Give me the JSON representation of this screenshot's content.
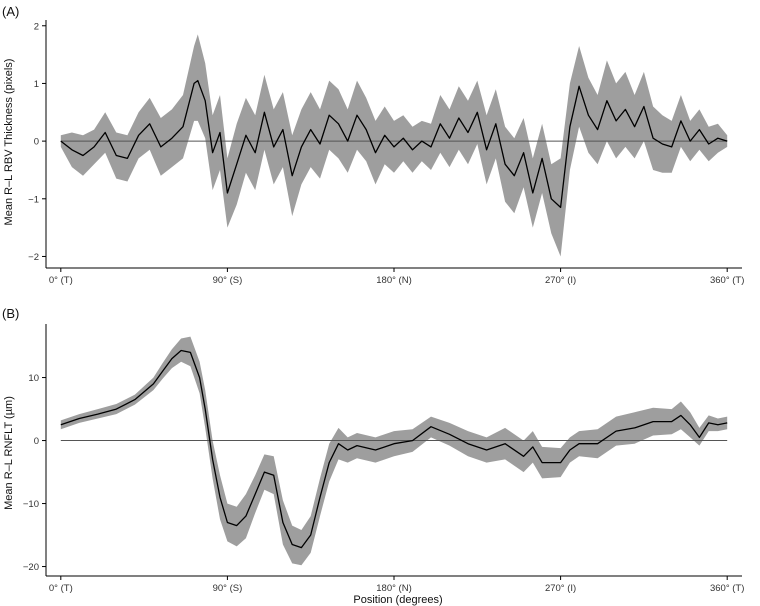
{
  "chart_data": [
    {
      "type": "line",
      "panel_label": "(A)",
      "title": "",
      "ylabel": "Mean R–L RBV Thickness (pixels)",
      "xlabel": "",
      "xlim": [
        -8,
        368
      ],
      "ylim": [
        -2.2,
        2.1
      ],
      "x_ticks": [
        0,
        90,
        180,
        270,
        360
      ],
      "x_tick_labels": [
        "0° (T)",
        "90° (S)",
        "180° (N)",
        "270° (I)",
        "360° (T)"
      ],
      "y_ticks": [
        -2,
        -1,
        0,
        1,
        2
      ],
      "y_tick_labels": [
        "−2",
        "−1",
        "0",
        "1",
        "2"
      ],
      "reference_line_y": 0,
      "colors": {
        "line": "#000000",
        "band": "#9e9e9e",
        "reference": "#555555"
      },
      "grid": false,
      "series": [
        {
          "x": [
            0,
            6,
            12,
            18,
            24,
            30,
            36,
            42,
            48,
            54,
            60,
            66,
            72,
            74,
            78,
            82,
            86,
            90,
            95,
            100,
            105,
            110,
            115,
            120,
            125,
            130,
            135,
            140,
            145,
            150,
            155,
            160,
            165,
            170,
            175,
            180,
            185,
            190,
            195,
            200,
            205,
            210,
            215,
            220,
            225,
            230,
            235,
            240,
            245,
            250,
            255,
            260,
            265,
            270,
            275,
            280,
            285,
            290,
            295,
            300,
            305,
            310,
            315,
            320,
            325,
            330,
            335,
            340,
            345,
            350,
            355,
            360
          ],
          "y": [
            0,
            -0.15,
            -0.25,
            -0.1,
            0.15,
            -0.25,
            -0.3,
            0.1,
            0.3,
            -0.1,
            0.05,
            0.25,
            1.0,
            1.05,
            0.7,
            -0.2,
            0.15,
            -0.9,
            -0.4,
            0.1,
            -0.2,
            0.5,
            -0.1,
            0.2,
            -0.6,
            -0.1,
            0.2,
            -0.05,
            0.45,
            0.3,
            0.0,
            0.45,
            0.2,
            -0.2,
            0.1,
            -0.1,
            0.05,
            -0.15,
            0.0,
            -0.1,
            0.3,
            0.05,
            0.4,
            0.15,
            0.5,
            -0.15,
            0.3,
            -0.4,
            -0.6,
            -0.2,
            -0.9,
            -0.3,
            -1.0,
            -1.15,
            0.25,
            0.95,
            0.45,
            0.2,
            0.7,
            0.35,
            0.55,
            0.25,
            0.6,
            0.05,
            -0.05,
            -0.1,
            0.35,
            0.0,
            0.2,
            -0.05,
            0.05,
            0.0
          ],
          "lower": [
            -0.1,
            -0.45,
            -0.6,
            -0.4,
            -0.2,
            -0.65,
            -0.7,
            -0.3,
            -0.15,
            -0.6,
            -0.45,
            -0.3,
            0.35,
            0.35,
            0.05,
            -0.85,
            -0.5,
            -1.5,
            -1.1,
            -0.55,
            -0.85,
            -0.15,
            -0.75,
            -0.45,
            -1.3,
            -0.75,
            -0.45,
            -0.65,
            -0.15,
            -0.3,
            -0.55,
            -0.15,
            -0.35,
            -0.75,
            -0.4,
            -0.55,
            -0.35,
            -0.55,
            -0.35,
            -0.5,
            -0.2,
            -0.45,
            -0.15,
            -0.4,
            -0.05,
            -0.75,
            -0.3,
            -1.05,
            -1.25,
            -0.8,
            -1.5,
            -0.9,
            -1.6,
            -2.0,
            -0.5,
            0.25,
            -0.2,
            -0.4,
            0.0,
            -0.3,
            -0.1,
            -0.3,
            0.0,
            -0.5,
            -0.55,
            -0.55,
            -0.1,
            -0.35,
            -0.15,
            -0.35,
            -0.2,
            -0.1
          ],
          "upper": [
            0.1,
            0.15,
            0.1,
            0.2,
            0.5,
            0.15,
            0.1,
            0.5,
            0.75,
            0.4,
            0.55,
            0.8,
            1.65,
            1.85,
            1.35,
            0.45,
            0.8,
            -0.3,
            0.3,
            0.75,
            0.45,
            1.15,
            0.55,
            0.85,
            0.1,
            0.55,
            0.85,
            0.55,
            1.05,
            0.9,
            0.55,
            1.05,
            0.75,
            0.35,
            0.6,
            0.35,
            0.45,
            0.25,
            0.35,
            0.3,
            0.8,
            0.55,
            0.95,
            0.7,
            1.05,
            0.45,
            0.9,
            0.25,
            0.05,
            0.4,
            -0.3,
            0.3,
            -0.4,
            -0.3,
            1.0,
            1.65,
            1.1,
            0.8,
            1.4,
            1.0,
            1.2,
            0.8,
            1.2,
            0.6,
            0.45,
            0.35,
            0.8,
            0.35,
            0.55,
            0.25,
            0.3,
            0.1
          ]
        }
      ]
    },
    {
      "type": "line",
      "panel_label": "(B)",
      "title": "",
      "ylabel": "Mean R–L RNFLT (µm)",
      "xlabel": "Position (degrees)",
      "xlim": [
        -8,
        368
      ],
      "ylim": [
        -21.5,
        18.5
      ],
      "x_ticks": [
        0,
        90,
        180,
        270,
        360
      ],
      "x_tick_labels": [
        "0° (T)",
        "90° (S)",
        "180° (N)",
        "270° (I)",
        "360° (T)"
      ],
      "y_ticks": [
        -20,
        -10,
        0,
        10
      ],
      "y_tick_labels": [
        "−20",
        "−10",
        "0",
        "10"
      ],
      "reference_line_y": 0,
      "colors": {
        "line": "#000000",
        "band": "#9e9e9e",
        "reference": "#555555"
      },
      "grid": false,
      "series": [
        {
          "x": [
            0,
            10,
            20,
            30,
            40,
            50,
            55,
            60,
            65,
            70,
            75,
            78,
            82,
            86,
            90,
            95,
            100,
            105,
            110,
            115,
            120,
            125,
            130,
            135,
            140,
            145,
            150,
            155,
            160,
            170,
            180,
            190,
            200,
            210,
            220,
            230,
            240,
            250,
            255,
            260,
            270,
            275,
            280,
            290,
            300,
            310,
            320,
            330,
            335,
            340,
            345,
            350,
            355,
            360
          ],
          "y": [
            2.5,
            3.5,
            4.2,
            5.0,
            6.5,
            9.0,
            11.0,
            13.0,
            14.3,
            14.0,
            10.0,
            5.0,
            -3.0,
            -9.0,
            -13.0,
            -13.5,
            -12.0,
            -8.5,
            -5.0,
            -5.5,
            -13.0,
            -16.5,
            -17.0,
            -15.0,
            -9.0,
            -3.5,
            -0.5,
            -1.5,
            -0.8,
            -1.5,
            -0.5,
            0.0,
            2.2,
            1.0,
            -0.5,
            -1.5,
            -0.5,
            -2.5,
            -1.0,
            -3.5,
            -3.5,
            -1.5,
            -0.5,
            -0.5,
            1.5,
            2.0,
            3.0,
            3.0,
            4.0,
            2.5,
            0.5,
            2.8,
            2.5,
            2.8
          ],
          "lower": [
            1.8,
            2.8,
            3.5,
            4.2,
            5.7,
            8.0,
            9.8,
            11.5,
            12.5,
            11.8,
            7.5,
            2.0,
            -6.0,
            -12.5,
            -16.0,
            -16.8,
            -15.5,
            -11.5,
            -7.8,
            -8.5,
            -16.5,
            -19.5,
            -19.8,
            -17.8,
            -12.0,
            -6.5,
            -3.0,
            -3.5,
            -2.8,
            -3.5,
            -2.5,
            -1.8,
            0.5,
            -0.8,
            -2.5,
            -3.5,
            -3.0,
            -5.0,
            -3.5,
            -6.0,
            -5.8,
            -3.5,
            -2.5,
            -2.8,
            -0.8,
            -0.5,
            0.8,
            1.0,
            1.8,
            0.5,
            -0.8,
            1.5,
            1.5,
            1.8
          ],
          "upper": [
            3.2,
            4.2,
            5.0,
            5.8,
            7.3,
            10.0,
            12.3,
            14.5,
            16.2,
            16.5,
            12.5,
            8.0,
            0.0,
            -5.5,
            -10.0,
            -10.5,
            -8.5,
            -5.5,
            -2.2,
            -2.5,
            -9.5,
            -13.5,
            -14.2,
            -12.0,
            -6.0,
            -0.5,
            2.0,
            0.5,
            1.2,
            0.5,
            1.5,
            1.8,
            3.8,
            2.8,
            1.5,
            0.5,
            2.0,
            0.0,
            1.5,
            -1.0,
            -1.2,
            0.5,
            1.5,
            1.8,
            3.8,
            4.5,
            5.2,
            5.0,
            6.2,
            4.5,
            2.0,
            4.0,
            3.5,
            3.8
          ]
        }
      ]
    }
  ]
}
